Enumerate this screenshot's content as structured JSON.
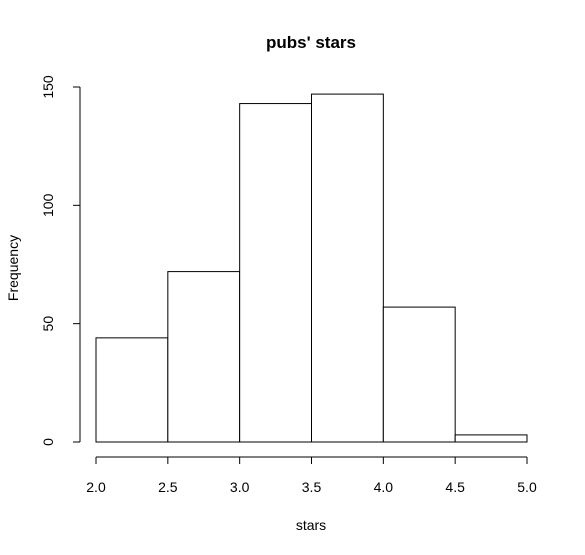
{
  "chart_data": {
    "type": "bar",
    "title": "pubs' stars",
    "xlabel": "stars",
    "ylabel": "Frequency",
    "bins": [
      {
        "x0": 2.0,
        "x1": 2.5,
        "value": 44
      },
      {
        "x0": 2.5,
        "x1": 3.0,
        "value": 72
      },
      {
        "x0": 3.0,
        "x1": 3.5,
        "value": 143
      },
      {
        "x0": 3.5,
        "x1": 4.0,
        "value": 147
      },
      {
        "x0": 4.0,
        "x1": 4.5,
        "value": 57
      },
      {
        "x0": 4.5,
        "x1": 5.0,
        "value": 3
      }
    ],
    "xlim": [
      2.0,
      5.0
    ],
    "ylim": [
      0,
      150
    ],
    "xticks": [
      "2.0",
      "2.5",
      "3.0",
      "3.5",
      "4.0",
      "4.5",
      "5.0"
    ],
    "yticks": [
      "0",
      "50",
      "100",
      "150"
    ],
    "grid": false,
    "bar_fill": "#ffffff",
    "bar_stroke": "#000000"
  }
}
